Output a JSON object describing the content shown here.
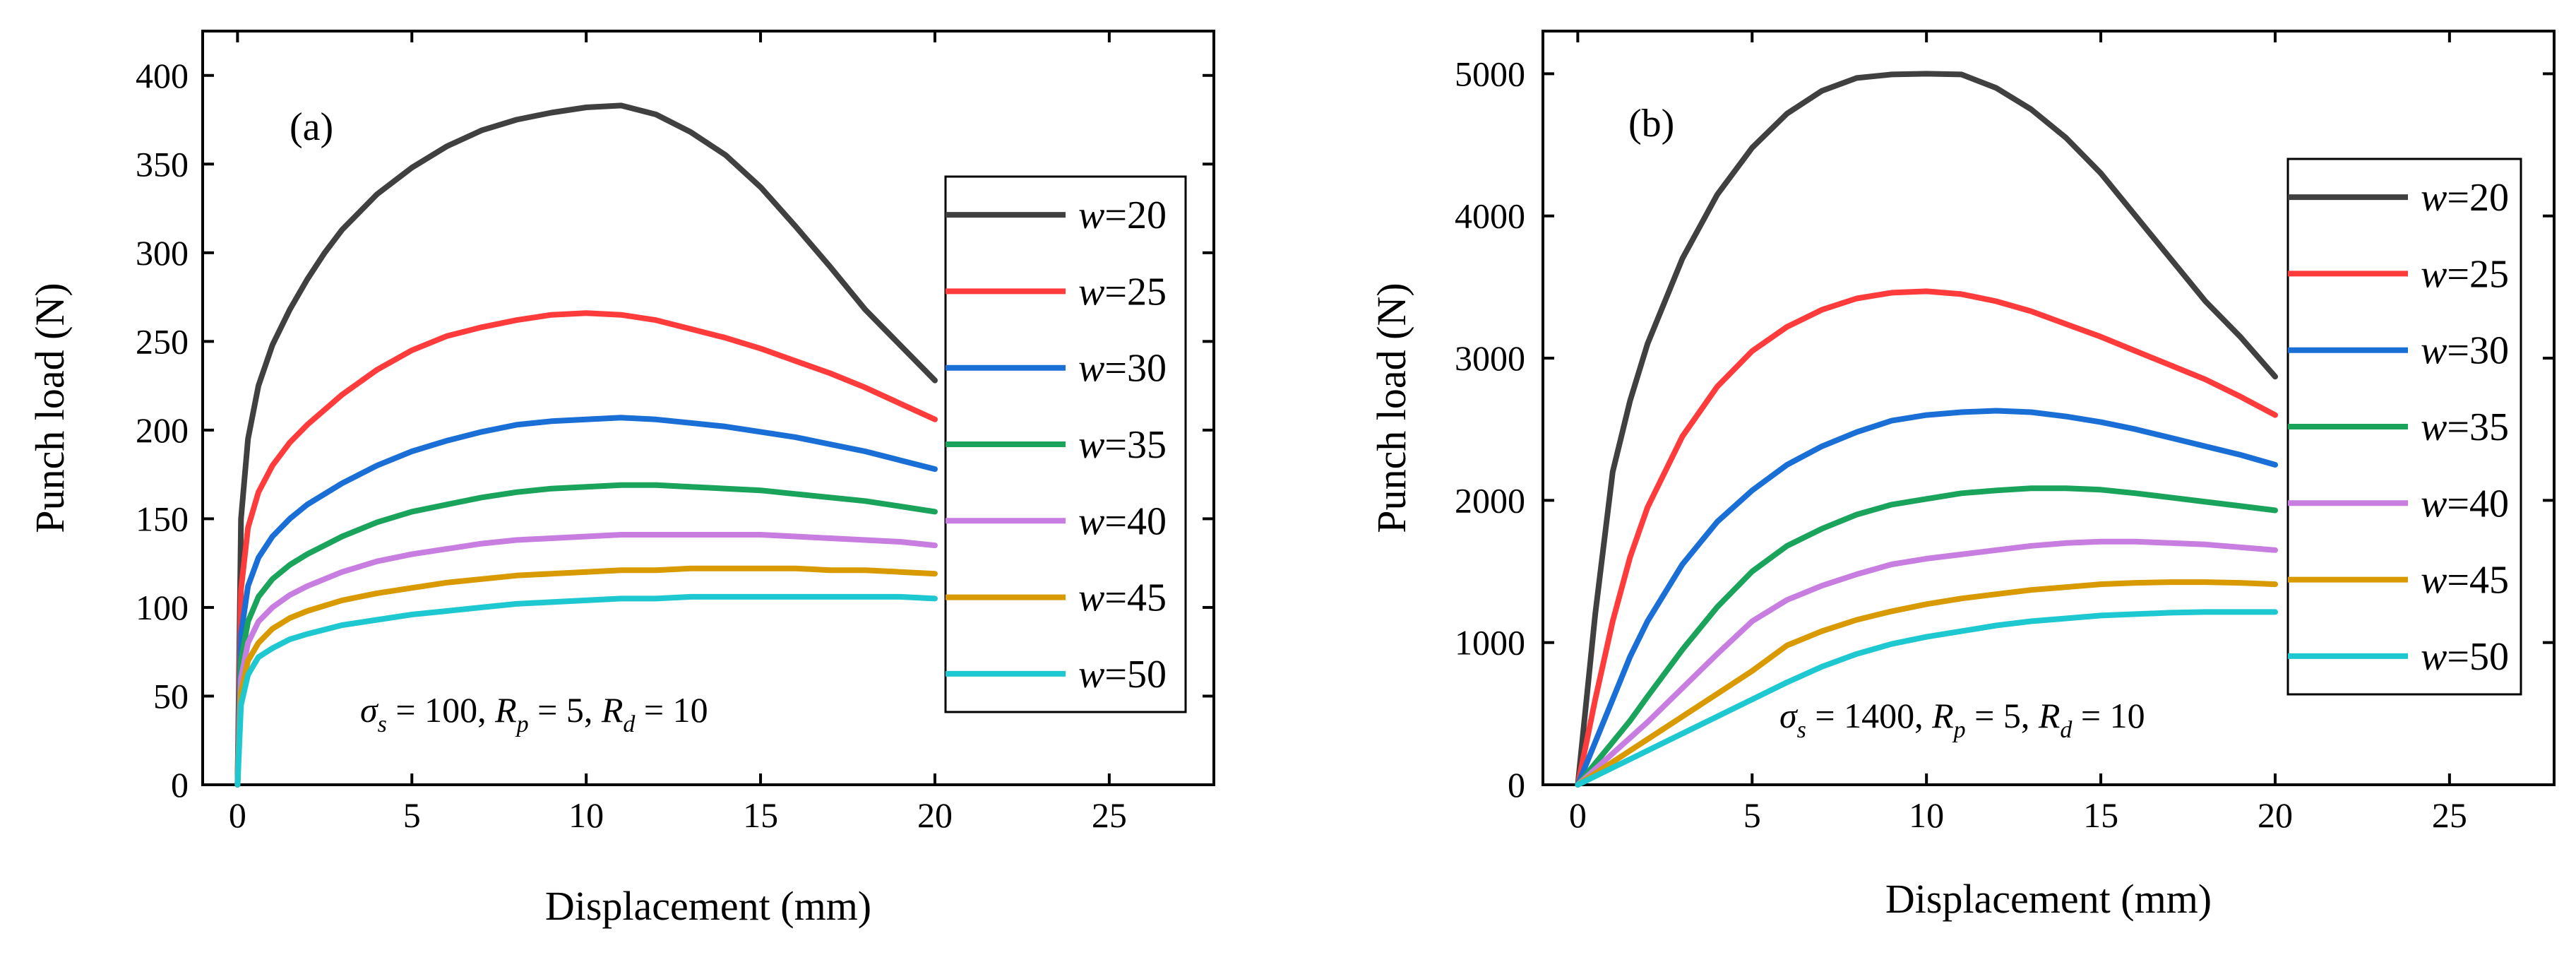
{
  "chart_data": [
    {
      "type": "line",
      "panel_label": "(a)",
      "xlabel": "Displacement (mm)",
      "ylabel": "Punch load (N)",
      "xlim": [
        -1,
        28
      ],
      "ylim": [
        0,
        425
      ],
      "xticks": [
        0,
        5,
        10,
        15,
        20,
        25
      ],
      "yticks": [
        0,
        50,
        100,
        150,
        200,
        250,
        300,
        350,
        400
      ],
      "legend_position": "right",
      "annotation": {
        "sigma": "σ",
        "s": "s",
        "eq1": " = 100, ",
        "R1": "R",
        "p": "p",
        "eq2": " = 5, ",
        "R2": "R",
        "d": "d",
        "eq3": " = 10"
      },
      "series": [
        {
          "name": "w=20",
          "w": "w",
          "label": "=20",
          "color": "#404040",
          "x": [
            0,
            0.1,
            0.3,
            0.6,
            1,
            1.5,
            2,
            2.5,
            3,
            4,
            5,
            6,
            7,
            8,
            9,
            10,
            11,
            12,
            13,
            14,
            15,
            16,
            17,
            18,
            19,
            20
          ],
          "y": [
            0,
            150,
            195,
            225,
            248,
            268,
            285,
            300,
            313,
            333,
            348,
            360,
            369,
            375,
            379,
            382,
            383,
            378,
            368,
            355,
            337,
            315,
            292,
            268,
            248,
            228
          ]
        },
        {
          "name": "w=25",
          "w": "w",
          "label": "=25",
          "color": "#ff3b3b",
          "x": [
            0,
            0.1,
            0.3,
            0.6,
            1,
            1.5,
            2,
            3,
            4,
            5,
            6,
            7,
            8,
            9,
            10,
            11,
            12,
            13,
            14,
            15,
            16,
            17,
            18,
            19,
            20
          ],
          "y": [
            0,
            110,
            145,
            165,
            180,
            193,
            203,
            220,
            234,
            245,
            253,
            258,
            262,
            265,
            266,
            265,
            262,
            257,
            252,
            246,
            239,
            232,
            224,
            215,
            206
          ]
        },
        {
          "name": "w=30",
          "w": "w",
          "label": "=30",
          "color": "#1a6fd6",
          "x": [
            0,
            0.1,
            0.3,
            0.6,
            1,
            1.5,
            2,
            3,
            4,
            5,
            6,
            7,
            8,
            9,
            10,
            11,
            12,
            13,
            14,
            15,
            16,
            17,
            18,
            19,
            20
          ],
          "y": [
            0,
            85,
            112,
            128,
            140,
            150,
            158,
            170,
            180,
            188,
            194,
            199,
            203,
            205,
            206,
            207,
            206,
            204,
            202,
            199,
            196,
            192,
            188,
            183,
            178
          ]
        },
        {
          "name": "w=35",
          "w": "w",
          "label": "=35",
          "color": "#1aa35a",
          "x": [
            0,
            0.1,
            0.3,
            0.6,
            1,
            1.5,
            2,
            3,
            4,
            5,
            6,
            7,
            8,
            9,
            10,
            11,
            12,
            13,
            14,
            15,
            16,
            17,
            18,
            19,
            20
          ],
          "y": [
            0,
            70,
            92,
            106,
            116,
            124,
            130,
            140,
            148,
            154,
            158,
            162,
            165,
            167,
            168,
            169,
            169,
            168,
            167,
            166,
            164,
            162,
            160,
            157,
            154
          ]
        },
        {
          "name": "w=40",
          "w": "w",
          "label": "=40",
          "color": "#c77ee0",
          "x": [
            0,
            0.1,
            0.3,
            0.6,
            1,
            1.5,
            2,
            3,
            4,
            5,
            6,
            7,
            8,
            9,
            10,
            11,
            12,
            13,
            14,
            15,
            16,
            17,
            18,
            19,
            20
          ],
          "y": [
            0,
            60,
            80,
            92,
            100,
            107,
            112,
            120,
            126,
            130,
            133,
            136,
            138,
            139,
            140,
            141,
            141,
            141,
            141,
            141,
            140,
            139,
            138,
            137,
            135
          ]
        },
        {
          "name": "w=45",
          "w": "w",
          "label": "=45",
          "color": "#d99a00",
          "x": [
            0,
            0.1,
            0.3,
            0.6,
            1,
            1.5,
            2,
            3,
            4,
            5,
            6,
            7,
            8,
            9,
            10,
            11,
            12,
            13,
            14,
            15,
            16,
            17,
            18,
            19,
            20
          ],
          "y": [
            0,
            52,
            70,
            80,
            88,
            94,
            98,
            104,
            108,
            111,
            114,
            116,
            118,
            119,
            120,
            121,
            121,
            122,
            122,
            122,
            122,
            121,
            121,
            120,
            119
          ]
        },
        {
          "name": "w=50",
          "w": "w",
          "label": "=50",
          "color": "#1ec8d0",
          "x": [
            0,
            0.1,
            0.3,
            0.6,
            1,
            1.5,
            2,
            3,
            4,
            5,
            6,
            7,
            8,
            9,
            10,
            11,
            12,
            13,
            14,
            15,
            16,
            17,
            18,
            19,
            20
          ],
          "y": [
            0,
            45,
            62,
            72,
            77,
            82,
            85,
            90,
            93,
            96,
            98,
            100,
            102,
            103,
            104,
            105,
            105,
            106,
            106,
            106,
            106,
            106,
            106,
            106,
            105
          ]
        }
      ]
    },
    {
      "type": "line",
      "panel_label": "(b)",
      "xlabel": "Displacement (mm)",
      "ylabel": "Punch load (N)",
      "xlim": [
        -1,
        28
      ],
      "ylim": [
        0,
        5300
      ],
      "xticks": [
        0,
        5,
        10,
        15,
        20,
        25
      ],
      "yticks": [
        0,
        1000,
        2000,
        3000,
        4000,
        5000
      ],
      "legend_position": "right",
      "annotation": {
        "sigma": "σ",
        "s": "s",
        "eq1": " = 1400, ",
        "R1": "R",
        "p": "p",
        "eq2": " = 5, ",
        "R2": "R",
        "d": "d",
        "eq3": " = 10"
      },
      "series": [
        {
          "name": "w=20",
          "w": "w",
          "label": "=20",
          "color": "#404040",
          "x": [
            0,
            0.5,
            1,
            1.5,
            2,
            3,
            4,
            5,
            6,
            7,
            8,
            9,
            10,
            11,
            12,
            13,
            14,
            15,
            16,
            17,
            18,
            19,
            20
          ],
          "y": [
            0,
            1200,
            2200,
            2700,
            3100,
            3700,
            4150,
            4480,
            4720,
            4880,
            4970,
            4995,
            5000,
            4995,
            4900,
            4750,
            4550,
            4300,
            4000,
            3700,
            3400,
            3150,
            2870
          ]
        },
        {
          "name": "w=25",
          "w": "w",
          "label": "=25",
          "color": "#ff3b3b",
          "x": [
            0,
            0.5,
            1,
            1.5,
            2,
            3,
            4,
            5,
            6,
            7,
            8,
            9,
            10,
            11,
            12,
            13,
            14,
            15,
            16,
            17,
            18,
            19,
            20
          ],
          "y": [
            0,
            600,
            1150,
            1600,
            1950,
            2450,
            2800,
            3050,
            3220,
            3340,
            3420,
            3460,
            3470,
            3450,
            3400,
            3330,
            3240,
            3150,
            3050,
            2950,
            2850,
            2730,
            2600
          ]
        },
        {
          "name": "w=30",
          "w": "w",
          "label": "=30",
          "color": "#1a6fd6",
          "x": [
            0,
            0.5,
            1,
            1.5,
            2,
            3,
            4,
            5,
            6,
            7,
            8,
            9,
            10,
            11,
            12,
            13,
            14,
            15,
            16,
            17,
            18,
            19,
            20
          ],
          "y": [
            0,
            300,
            600,
            900,
            1150,
            1550,
            1850,
            2070,
            2250,
            2380,
            2480,
            2560,
            2600,
            2620,
            2630,
            2620,
            2590,
            2550,
            2500,
            2440,
            2380,
            2320,
            2250
          ]
        },
        {
          "name": "w=35",
          "w": "w",
          "label": "=35",
          "color": "#1aa35a",
          "x": [
            0,
            0.5,
            1,
            1.5,
            2,
            3,
            4,
            5,
            6,
            7,
            8,
            9,
            10,
            11,
            12,
            13,
            14,
            15,
            16,
            17,
            18,
            19,
            20
          ],
          "y": [
            0,
            150,
            300,
            450,
            620,
            950,
            1250,
            1500,
            1680,
            1800,
            1900,
            1970,
            2010,
            2050,
            2070,
            2085,
            2085,
            2075,
            2050,
            2020,
            1990,
            1960,
            1930
          ]
        },
        {
          "name": "w=40",
          "w": "w",
          "label": "=40",
          "color": "#c77ee0",
          "x": [
            0,
            0.5,
            1,
            1.5,
            2,
            3,
            4,
            5,
            6,
            7,
            8,
            9,
            10,
            11,
            12,
            13,
            14,
            15,
            16,
            17,
            18,
            19,
            20
          ],
          "y": [
            0,
            110,
            220,
            330,
            440,
            680,
            920,
            1150,
            1300,
            1400,
            1480,
            1550,
            1590,
            1620,
            1650,
            1680,
            1700,
            1710,
            1710,
            1700,
            1690,
            1670,
            1650
          ]
        },
        {
          "name": "w=45",
          "w": "w",
          "label": "=45",
          "color": "#d99a00",
          "x": [
            0,
            0.5,
            1,
            1.5,
            2,
            3,
            4,
            5,
            6,
            7,
            8,
            9,
            10,
            11,
            12,
            13,
            14,
            15,
            16,
            17,
            18,
            19,
            20
          ],
          "y": [
            0,
            80,
            160,
            240,
            320,
            480,
            640,
            800,
            980,
            1080,
            1160,
            1220,
            1270,
            1310,
            1340,
            1370,
            1390,
            1410,
            1420,
            1425,
            1425,
            1420,
            1410
          ]
        },
        {
          "name": "w=50",
          "w": "w",
          "label": "=50",
          "color": "#1ec8d0",
          "x": [
            0,
            0.5,
            1,
            1.5,
            2,
            3,
            4,
            5,
            6,
            7,
            8,
            9,
            10,
            11,
            12,
            13,
            14,
            15,
            16,
            17,
            18,
            19,
            20
          ],
          "y": [
            0,
            60,
            120,
            180,
            240,
            360,
            480,
            600,
            720,
            830,
            920,
            990,
            1040,
            1080,
            1120,
            1150,
            1170,
            1190,
            1200,
            1210,
            1215,
            1215,
            1215
          ]
        }
      ]
    }
  ]
}
